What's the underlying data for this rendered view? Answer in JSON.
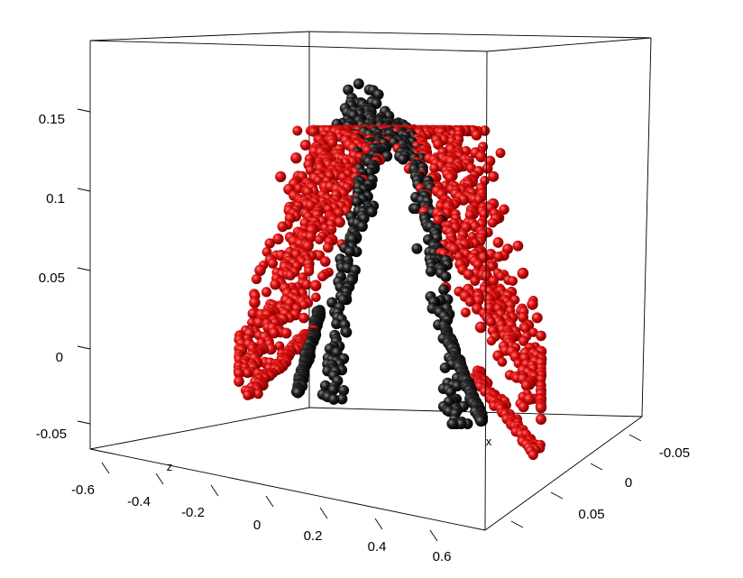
{
  "chart_data": {
    "type": "scatter",
    "title": "",
    "projection": "3d",
    "axes": {
      "y": {
        "name": "",
        "ticks": [
          "-0.05",
          "0",
          "0.05",
          "0.1",
          "0.15"
        ]
      },
      "z": {
        "name": "z",
        "ticks": [
          "-0.6",
          "-0.4",
          "-0.2",
          "0",
          "0.2",
          "0.4",
          "0.6"
        ]
      },
      "x": {
        "name": "x",
        "ticks": [
          "-0.05",
          "0",
          "0.05"
        ]
      }
    },
    "grid": false,
    "legend": "none",
    "series": [
      {
        "color": "#dd0000",
        "shape": "sphere",
        "description_points": "dense curved surface of points forming an arch shape"
      },
      {
        "color": "#111111",
        "shape": "sphere",
        "description_points": "points along the ridge and the two legs of the arch"
      }
    ]
  }
}
